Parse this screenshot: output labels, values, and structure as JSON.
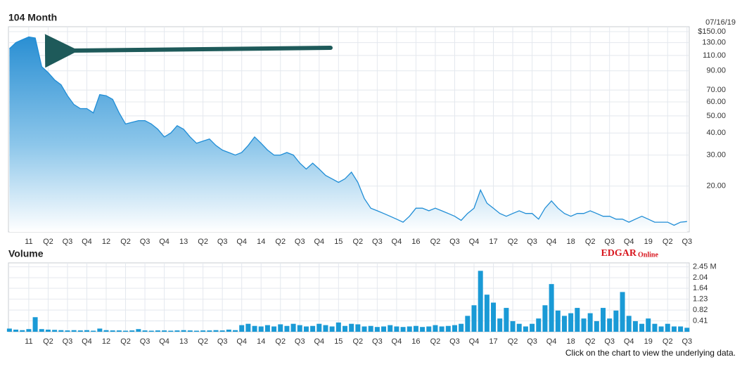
{
  "chart_data": [
    {
      "type": "area",
      "title": "104 Month",
      "date": "07/16/19",
      "log_scale": true,
      "grid": true,
      "color": "#1f8dd6",
      "categories": [
        null,
        null,
        null,
        "11",
        null,
        null,
        "Q2",
        null,
        null,
        "Q3",
        null,
        null,
        "Q4",
        null,
        null,
        "12",
        null,
        null,
        "Q2",
        null,
        null,
        "Q3",
        null,
        null,
        "Q4",
        null,
        null,
        "13",
        null,
        null,
        "Q2",
        null,
        null,
        "Q3",
        null,
        null,
        "Q4",
        null,
        null,
        "14",
        null,
        null,
        "Q2",
        null,
        null,
        "Q3",
        null,
        null,
        "Q4",
        null,
        null,
        "15",
        null,
        null,
        "Q2",
        null,
        null,
        "Q3",
        null,
        null,
        "Q4",
        null,
        null,
        "16",
        null,
        null,
        "Q2",
        null,
        null,
        "Q3",
        null,
        null,
        "Q4",
        null,
        null,
        "17",
        null,
        null,
        "Q2",
        null,
        null,
        "Q3",
        null,
        null,
        "Q4",
        null,
        null,
        "18",
        null,
        null,
        "Q2",
        null,
        null,
        "Q3",
        null,
        null,
        "Q4",
        null,
        null,
        "19",
        null,
        null,
        "Q2",
        null,
        null,
        "Q3"
      ],
      "values": [
        120,
        130,
        135,
        140,
        138,
        95,
        88,
        80,
        75,
        65,
        58,
        55,
        55,
        52,
        66,
        65,
        62,
        52,
        45,
        46,
        47,
        47,
        45,
        42,
        38,
        40,
        44,
        42,
        38,
        35,
        36,
        37,
        34,
        32,
        31,
        30,
        31,
        34,
        38,
        35,
        32,
        30,
        30,
        31,
        30,
        27,
        25,
        27,
        25,
        23,
        22,
        21,
        22,
        24,
        21,
        17,
        15,
        14.5,
        14,
        13.5,
        13,
        12.5,
        13.5,
        15,
        15,
        14.5,
        15,
        14.5,
        14,
        13.5,
        12.8,
        14,
        15,
        19,
        16,
        15,
        14,
        13.5,
        14,
        14.5,
        14,
        14,
        13,
        15,
        16.5,
        15,
        14,
        13.5,
        14,
        14,
        14.5,
        14,
        13.5,
        13.5,
        13,
        13,
        12.5,
        13,
        13.5,
        13,
        12.5,
        12.5,
        12.5,
        12,
        12.5,
        12.6
      ],
      "ylim": [
        11,
        160
      ],
      "yticks": [
        {
          "value": 150,
          "label": "$150.00"
        },
        {
          "value": 130,
          "label": "130.00"
        },
        {
          "value": 110,
          "label": "110.00"
        },
        {
          "value": 90,
          "label": "90.00"
        },
        {
          "value": 70,
          "label": "70.00"
        },
        {
          "value": 60,
          "label": "60.00"
        },
        {
          "value": 50,
          "label": "50.00"
        },
        {
          "value": 40,
          "label": "40.00"
        },
        {
          "value": 30,
          "label": "30.00"
        },
        {
          "value": 20,
          "label": "20.00"
        }
      ]
    },
    {
      "type": "bar",
      "title": "Volume",
      "color": "#1a9ad6",
      "grid": true,
      "categories": [
        null,
        null,
        null,
        "11",
        null,
        null,
        "Q2",
        null,
        null,
        "Q3",
        null,
        null,
        "Q4",
        null,
        null,
        "12",
        null,
        null,
        "Q2",
        null,
        null,
        "Q3",
        null,
        null,
        "Q4",
        null,
        null,
        "13",
        null,
        null,
        "Q2",
        null,
        null,
        "Q3",
        null,
        null,
        "Q4",
        null,
        null,
        "14",
        null,
        null,
        "Q2",
        null,
        null,
        "Q3",
        null,
        null,
        "Q4",
        null,
        null,
        "15",
        null,
        null,
        "Q2",
        null,
        null,
        "Q3",
        null,
        null,
        "Q4",
        null,
        null,
        "16",
        null,
        null,
        "Q2",
        null,
        null,
        "Q3",
        null,
        null,
        "Q4",
        null,
        null,
        "17",
        null,
        null,
        "Q2",
        null,
        null,
        "Q3",
        null,
        null,
        "Q4",
        null,
        null,
        "18",
        null,
        null,
        "Q2",
        null,
        null,
        "Q3",
        null,
        null,
        "Q4",
        null,
        null,
        "19",
        null,
        null,
        "Q2",
        null,
        null,
        "Q3"
      ],
      "values": [
        0.12,
        0.08,
        0.06,
        0.1,
        0.55,
        0.1,
        0.08,
        0.07,
        0.06,
        0.05,
        0.06,
        0.05,
        0.06,
        0.04,
        0.12,
        0.06,
        0.05,
        0.05,
        0.04,
        0.05,
        0.1,
        0.05,
        0.04,
        0.05,
        0.05,
        0.04,
        0.05,
        0.06,
        0.05,
        0.04,
        0.05,
        0.05,
        0.06,
        0.05,
        0.08,
        0.06,
        0.25,
        0.3,
        0.22,
        0.2,
        0.25,
        0.2,
        0.28,
        0.22,
        0.3,
        0.25,
        0.2,
        0.22,
        0.3,
        0.25,
        0.2,
        0.35,
        0.22,
        0.3,
        0.28,
        0.2,
        0.22,
        0.18,
        0.2,
        0.25,
        0.2,
        0.18,
        0.2,
        0.22,
        0.18,
        0.2,
        0.25,
        0.2,
        0.22,
        0.25,
        0.3,
        0.6,
        1.0,
        2.3,
        1.4,
        1.1,
        0.5,
        0.9,
        0.4,
        0.3,
        0.2,
        0.3,
        0.5,
        1.0,
        1.8,
        0.8,
        0.6,
        0.7,
        0.9,
        0.5,
        0.7,
        0.4,
        0.9,
        0.5,
        0.8,
        1.5,
        0.6,
        0.4,
        0.3,
        0.5,
        0.3,
        0.2,
        0.3,
        0.2,
        0.2,
        0.15
      ],
      "ylim": [
        0,
        2.6
      ],
      "yticks": [
        {
          "value": 2.45,
          "label": "2.45 M"
        },
        2.04,
        1.64,
        1.23,
        0.82,
        0.41
      ]
    }
  ],
  "source": {
    "brand": "EDGAR",
    "suffix": "Online"
  },
  "note": "Click on the chart to view the underlying data."
}
